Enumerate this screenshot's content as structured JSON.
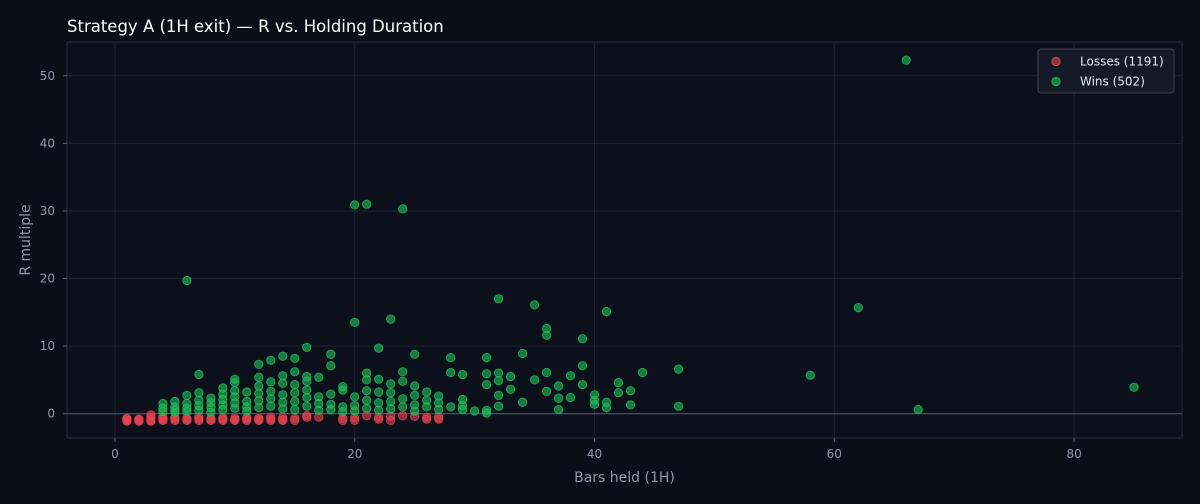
{
  "chart_data": {
    "type": "scatter",
    "title": "Strategy A (1H exit) — R vs. Holding Duration",
    "xlabel": "Bars held (1H)",
    "ylabel": "R multiple",
    "xlim": [
      -4,
      89
    ],
    "ylim": [
      -3.6,
      55
    ],
    "x_ticks": [
      0,
      20,
      40,
      60,
      80
    ],
    "y_ticks": [
      0,
      10,
      20,
      30,
      40,
      50
    ],
    "grid": true,
    "zero_line": true,
    "legend_position": "top-right",
    "colors": {
      "background": "#0a0e17",
      "losses": "#e5404f",
      "wins": "#1fbe58",
      "grid": "#1d2331",
      "zero_line": "#4a5566"
    },
    "series": [
      {
        "name": "Losses (1191)",
        "color": "#e5404f",
        "points": [
          [
            1,
            -1.0
          ],
          [
            1,
            -0.9
          ],
          [
            1,
            -0.8
          ],
          [
            1,
            -1.1
          ],
          [
            1,
            -0.7
          ],
          [
            2,
            -1.0
          ],
          [
            2,
            -0.8
          ],
          [
            2,
            -0.9
          ],
          [
            2,
            -1.1
          ],
          [
            3,
            -1.0
          ],
          [
            3,
            -0.5
          ],
          [
            3,
            -0.8
          ],
          [
            3,
            -0.2
          ],
          [
            3,
            -1.1
          ],
          [
            4,
            -1.0
          ],
          [
            4,
            -0.7
          ],
          [
            4,
            -0.9
          ],
          [
            4,
            -0.5
          ],
          [
            5,
            -1.0
          ],
          [
            5,
            -0.6
          ],
          [
            5,
            -0.8
          ],
          [
            6,
            -1.0
          ],
          [
            6,
            -0.7
          ],
          [
            6,
            -0.9
          ],
          [
            7,
            -1.0
          ],
          [
            7,
            -0.8
          ],
          [
            7,
            -0.5
          ],
          [
            8,
            -1.0
          ],
          [
            8,
            -0.7
          ],
          [
            8,
            -0.9
          ],
          [
            9,
            -1.0
          ],
          [
            9,
            -0.8
          ],
          [
            9,
            -0.6
          ],
          [
            10,
            -1.0
          ],
          [
            10,
            -0.7
          ],
          [
            10,
            -0.9
          ],
          [
            11,
            -1.0
          ],
          [
            11,
            -0.8
          ],
          [
            11,
            -0.6
          ],
          [
            12,
            -1.0
          ],
          [
            12,
            -0.7
          ],
          [
            12,
            -0.9
          ],
          [
            13,
            -1.0
          ],
          [
            13,
            -0.8
          ],
          [
            13,
            -0.5
          ],
          [
            14,
            -1.0
          ],
          [
            14,
            -0.6
          ],
          [
            14,
            -0.9
          ],
          [
            15,
            -1.0
          ],
          [
            15,
            -0.7
          ],
          [
            16,
            -0.5
          ],
          [
            16,
            -0.3
          ],
          [
            17,
            -0.5
          ],
          [
            19,
            -1.0
          ],
          [
            19,
            -0.7
          ],
          [
            20,
            -1.0
          ],
          [
            20,
            -0.6
          ],
          [
            21,
            -0.3
          ],
          [
            22,
            -0.8
          ],
          [
            22,
            -0.5
          ],
          [
            23,
            -1.0
          ],
          [
            23,
            -0.4
          ],
          [
            24,
            -0.3
          ],
          [
            25,
            -0.4
          ],
          [
            26,
            -0.8
          ],
          [
            26,
            -0.5
          ],
          [
            27,
            -0.8
          ],
          [
            27,
            -0.5
          ]
        ]
      },
      {
        "name": "Wins (502)",
        "color": "#1fbe58",
        "points": [
          [
            4,
            0.3
          ],
          [
            4,
            1.5
          ],
          [
            4,
            0.8
          ],
          [
            5,
            0.5
          ],
          [
            5,
            1.0
          ],
          [
            5,
            1.8
          ],
          [
            5,
            0.2
          ],
          [
            6,
            19.7
          ],
          [
            6,
            2.7
          ],
          [
            6,
            1.5
          ],
          [
            6,
            0.8
          ],
          [
            6,
            0.3
          ],
          [
            7,
            5.8
          ],
          [
            7,
            3.1
          ],
          [
            7,
            2.0
          ],
          [
            7,
            1.2
          ],
          [
            7,
            0.5
          ],
          [
            8,
            2.3
          ],
          [
            8,
            1.6
          ],
          [
            8,
            0.9
          ],
          [
            8,
            0.2
          ],
          [
            9,
            3.8
          ],
          [
            9,
            2.9
          ],
          [
            9,
            2.1
          ],
          [
            9,
            1.3
          ],
          [
            9,
            0.6
          ],
          [
            10,
            5.1
          ],
          [
            10,
            4.6
          ],
          [
            10,
            3.4
          ],
          [
            10,
            2.5
          ],
          [
            10,
            1.6
          ],
          [
            10,
            0.8
          ],
          [
            11,
            3.2
          ],
          [
            11,
            1.8
          ],
          [
            11,
            1.0
          ],
          [
            11,
            0.4
          ],
          [
            12,
            7.3
          ],
          [
            12,
            5.4
          ],
          [
            12,
            4.1
          ],
          [
            12,
            3.0
          ],
          [
            12,
            1.9
          ],
          [
            12,
            0.9
          ],
          [
            13,
            7.9
          ],
          [
            13,
            4.7
          ],
          [
            13,
            3.3
          ],
          [
            13,
            2.2
          ],
          [
            13,
            1.1
          ],
          [
            14,
            8.5
          ],
          [
            14,
            5.6
          ],
          [
            14,
            4.5
          ],
          [
            14,
            2.8
          ],
          [
            14,
            1.7
          ],
          [
            14,
            0.7
          ],
          [
            15,
            8.2
          ],
          [
            15,
            6.2
          ],
          [
            15,
            4.3
          ],
          [
            15,
            3.1
          ],
          [
            15,
            1.8
          ],
          [
            15,
            0.6
          ],
          [
            16,
            9.8
          ],
          [
            16,
            5.5
          ],
          [
            16,
            4.8
          ],
          [
            16,
            3.5
          ],
          [
            16,
            2.4
          ],
          [
            16,
            1.1
          ],
          [
            17,
            5.4
          ],
          [
            17,
            2.5
          ],
          [
            17,
            1.5
          ],
          [
            17,
            0.5
          ],
          [
            18,
            8.8
          ],
          [
            18,
            7.1
          ],
          [
            18,
            2.9
          ],
          [
            18,
            1.4
          ],
          [
            18,
            0.6
          ],
          [
            19,
            4.0
          ],
          [
            19,
            3.5
          ],
          [
            19,
            1.0
          ],
          [
            19,
            0.3
          ],
          [
            20,
            30.9
          ],
          [
            20,
            13.5
          ],
          [
            20,
            2.5
          ],
          [
            20,
            1.2
          ],
          [
            20,
            0.4
          ],
          [
            21,
            31.0
          ],
          [
            21,
            6.0
          ],
          [
            21,
            5.0
          ],
          [
            21,
            3.4
          ],
          [
            21,
            2.0
          ],
          [
            21,
            0.8
          ],
          [
            22,
            9.7
          ],
          [
            22,
            5.1
          ],
          [
            22,
            3.2
          ],
          [
            22,
            1.6
          ],
          [
            22,
            0.5
          ],
          [
            23,
            14.0
          ],
          [
            23,
            4.4
          ],
          [
            23,
            3.1
          ],
          [
            23,
            1.8
          ],
          [
            23,
            0.7
          ],
          [
            24,
            30.3
          ],
          [
            24,
            6.2
          ],
          [
            24,
            4.8
          ],
          [
            24,
            2.2
          ],
          [
            24,
            1.0
          ],
          [
            25,
            8.8
          ],
          [
            25,
            4.1
          ],
          [
            25,
            2.7
          ],
          [
            25,
            1.3
          ],
          [
            25,
            0.4
          ],
          [
            26,
            3.2
          ],
          [
            26,
            2.0
          ],
          [
            26,
            1.0
          ],
          [
            27,
            2.6
          ],
          [
            27,
            1.6
          ],
          [
            27,
            0.6
          ],
          [
            28,
            8.3
          ],
          [
            28,
            6.1
          ],
          [
            28,
            1.0
          ],
          [
            29,
            5.8
          ],
          [
            29,
            2.1
          ],
          [
            29,
            1.2
          ],
          [
            29,
            0.6
          ],
          [
            30,
            0.4
          ],
          [
            31,
            8.3
          ],
          [
            31,
            5.9
          ],
          [
            31,
            4.3
          ],
          [
            31,
            0.5
          ],
          [
            31,
            0.1
          ],
          [
            32,
            17.0
          ],
          [
            32,
            6.0
          ],
          [
            32,
            4.9
          ],
          [
            32,
            2.7
          ],
          [
            32,
            1.1
          ],
          [
            33,
            5.5
          ],
          [
            33,
            3.6
          ],
          [
            34,
            8.9
          ],
          [
            34,
            1.7
          ],
          [
            35,
            16.1
          ],
          [
            35,
            5.0
          ],
          [
            36,
            12.6
          ],
          [
            36,
            11.6
          ],
          [
            36,
            6.1
          ],
          [
            36,
            3.3
          ],
          [
            37,
            4.1
          ],
          [
            37,
            2.3
          ],
          [
            37,
            0.6
          ],
          [
            38,
            5.6
          ],
          [
            38,
            2.4
          ],
          [
            39,
            11.1
          ],
          [
            39,
            7.1
          ],
          [
            39,
            4.3
          ],
          [
            40,
            2.8
          ],
          [
            40,
            2.0
          ],
          [
            40,
            1.4
          ],
          [
            41,
            15.1
          ],
          [
            41,
            1.7
          ],
          [
            41,
            0.9
          ],
          [
            42,
            4.6
          ],
          [
            42,
            3.1
          ],
          [
            43,
            3.4
          ],
          [
            43,
            1.3
          ],
          [
            44,
            6.1
          ],
          [
            47,
            6.6
          ],
          [
            47,
            1.1
          ],
          [
            58,
            5.7
          ],
          [
            62,
            15.7
          ],
          [
            66,
            52.3
          ],
          [
            67,
            0.6
          ],
          [
            85,
            3.9
          ]
        ]
      }
    ]
  }
}
